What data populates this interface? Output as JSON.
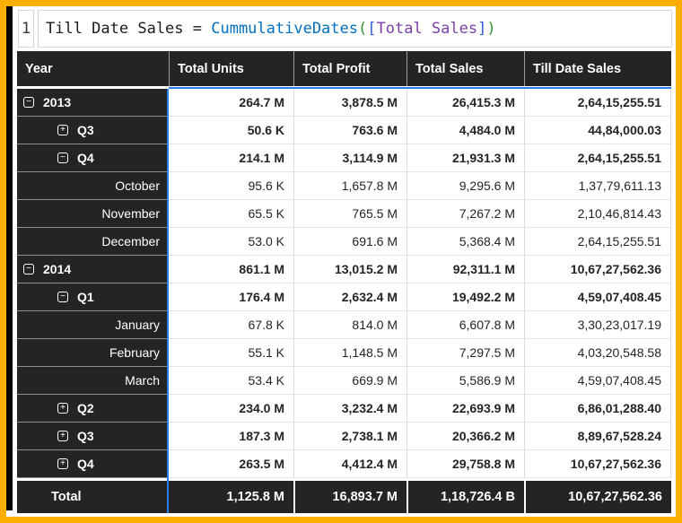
{
  "colors": {
    "frame_border": "#FBAD00",
    "accent_blue": "#2680EB",
    "dark_bg": "#252423",
    "tok_plain": "#1a1a1a",
    "tok_function": "#0070C0",
    "tok_paren": "#319331",
    "tok_bracket": "#2F5FD0",
    "tok_measure": "#7E3FA8"
  },
  "formula": {
    "line_number": "1",
    "tokens": [
      {
        "type": "plain",
        "text": "Till Date Sales = "
      },
      {
        "type": "function",
        "text": "CummulativeDates"
      },
      {
        "type": "paren",
        "text": "("
      },
      {
        "type": "bracket",
        "text": "["
      },
      {
        "type": "measure",
        "text": "Total Sales"
      },
      {
        "type": "bracket",
        "text": "]"
      },
      {
        "type": "paren",
        "text": ")"
      }
    ]
  },
  "table": {
    "columns": [
      "Year",
      "Total Units",
      "Total Profit",
      "Total Sales",
      "Till Date Sales"
    ],
    "rows": [
      {
        "label": "2013",
        "level": "year",
        "icon": "collapse",
        "emphasis": true,
        "values": [
          "264.7 M",
          "3,878.5 M",
          "26,415.3 M",
          "2,64,15,255.51"
        ]
      },
      {
        "label": "Q3",
        "level": "quarter",
        "icon": "expand",
        "emphasis": true,
        "values": [
          "50.6 K",
          "763.6 M",
          "4,484.0 M",
          "44,84,000.03"
        ]
      },
      {
        "label": "Q4",
        "level": "quarter",
        "icon": "collapse",
        "emphasis": true,
        "values": [
          "214.1 M",
          "3,114.9 M",
          "21,931.3 M",
          "2,64,15,255.51"
        ]
      },
      {
        "label": "October",
        "level": "month",
        "icon": null,
        "emphasis": false,
        "values": [
          "95.6 K",
          "1,657.8 M",
          "9,295.6 M",
          "1,37,79,611.13"
        ]
      },
      {
        "label": "November",
        "level": "month",
        "icon": null,
        "emphasis": false,
        "values": [
          "65.5 K",
          "765.5 M",
          "7,267.2 M",
          "2,10,46,814.43"
        ]
      },
      {
        "label": "December",
        "level": "month",
        "icon": null,
        "emphasis": false,
        "values": [
          "53.0 K",
          "691.6 M",
          "5,368.4 M",
          "2,64,15,255.51"
        ]
      },
      {
        "label": "2014",
        "level": "year",
        "icon": "collapse",
        "emphasis": true,
        "values": [
          "861.1 M",
          "13,015.2 M",
          "92,311.1 M",
          "10,67,27,562.36"
        ]
      },
      {
        "label": "Q1",
        "level": "quarter",
        "icon": "collapse",
        "emphasis": true,
        "values": [
          "176.4 M",
          "2,632.4 M",
          "19,492.2 M",
          "4,59,07,408.45"
        ]
      },
      {
        "label": "January",
        "level": "month",
        "icon": null,
        "emphasis": false,
        "values": [
          "67.8 K",
          "814.0 M",
          "6,607.8 M",
          "3,30,23,017.19"
        ]
      },
      {
        "label": "February",
        "level": "month",
        "icon": null,
        "emphasis": false,
        "values": [
          "55.1 K",
          "1,148.5 M",
          "7,297.5 M",
          "4,03,20,548.58"
        ]
      },
      {
        "label": "March",
        "level": "month",
        "icon": null,
        "emphasis": false,
        "values": [
          "53.4 K",
          "669.9 M",
          "5,586.9 M",
          "4,59,07,408.45"
        ]
      },
      {
        "label": "Q2",
        "level": "quarter",
        "icon": "expand",
        "emphasis": true,
        "values": [
          "234.0 M",
          "3,232.4 M",
          "22,693.9 M",
          "6,86,01,288.40"
        ]
      },
      {
        "label": "Q3",
        "level": "quarter",
        "icon": "expand",
        "emphasis": true,
        "values": [
          "187.3 M",
          "2,738.1 M",
          "20,366.2 M",
          "8,89,67,528.24"
        ]
      },
      {
        "label": "Q4",
        "level": "quarter",
        "icon": "expand",
        "emphasis": true,
        "values": [
          "263.5 M",
          "4,412.4 M",
          "29,758.8 M",
          "10,67,27,562.36"
        ]
      }
    ],
    "total": {
      "label": "Total",
      "values": [
        "1,125.8 M",
        "16,893.7 M",
        "1,18,726.4 B",
        "10,67,27,562.36"
      ]
    }
  }
}
